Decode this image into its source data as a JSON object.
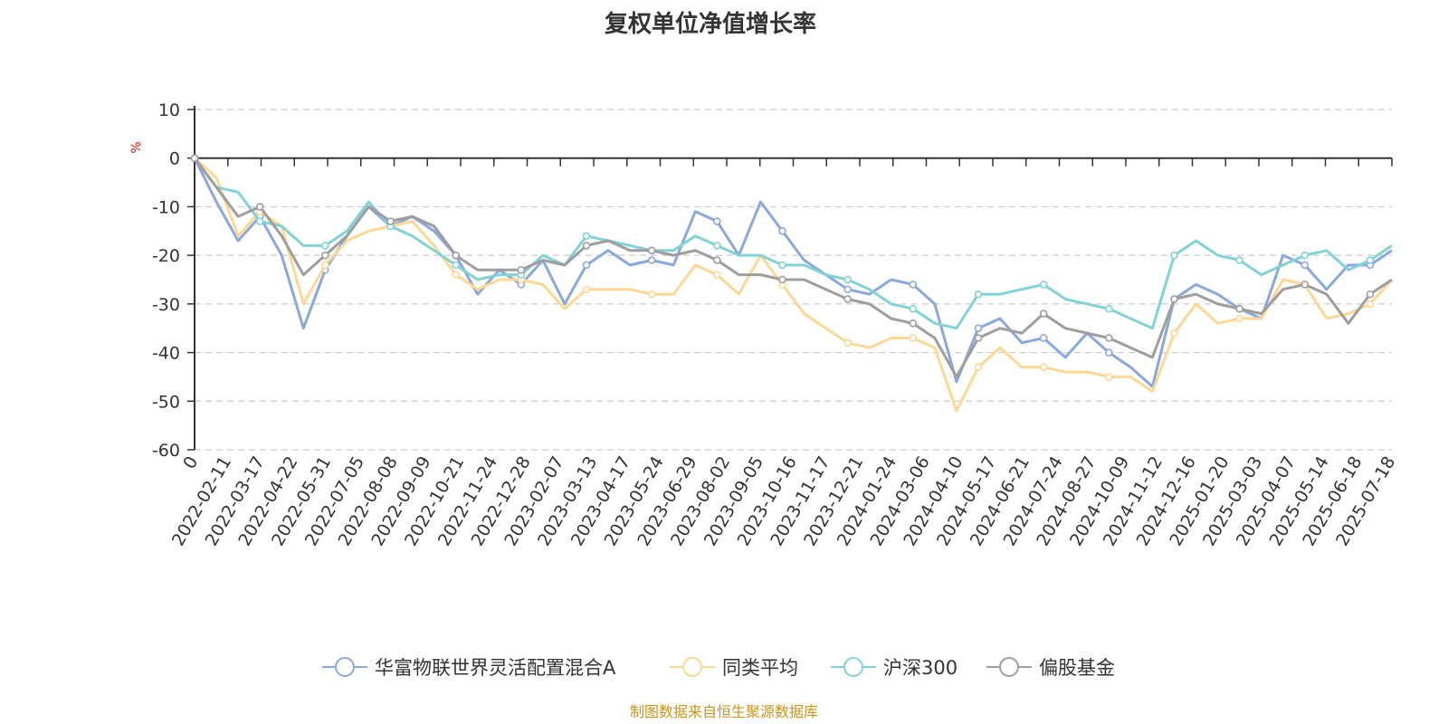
{
  "chart_data": {
    "type": "line",
    "title": "复权单位净值增长率",
    "ylabel": "%",
    "ylim": [
      -60,
      10
    ],
    "yticks": [
      10,
      0,
      -10,
      -20,
      -30,
      -40,
      -50,
      -60
    ],
    "x_tick_labels": [
      "0",
      "2022-02-11",
      "2022-03-17",
      "2022-04-22",
      "2022-05-31",
      "2022-07-05",
      "2022-08-08",
      "2022-09-09",
      "2022-10-21",
      "2022-11-24",
      "2022-12-28",
      "2023-02-07",
      "2023-03-13",
      "2023-04-17",
      "2023-05-24",
      "2023-06-29",
      "2023-08-02",
      "2023-09-05",
      "2023-10-16",
      "2023-11-17",
      "2023-12-21",
      "2024-01-24",
      "2024-03-06",
      "2024-04-10",
      "2024-05-17",
      "2024-06-21",
      "2024-07-24",
      "2024-08-27",
      "2024-10-09",
      "2024-11-12",
      "2024-12-16",
      "2025-01-20",
      "2025-03-03",
      "2025-04-07",
      "2025-05-14",
      "2025-06-18",
      "2025-07-18"
    ],
    "grid": true,
    "legend_position": "bottom",
    "source_note": "制图数据来自恒生聚源数据库",
    "series": [
      {
        "name": "华富物联世界灵活配置混合A",
        "color": "#8aa8db",
        "values": [
          0,
          -9,
          -17,
          -12,
          -20,
          -35,
          -23,
          -16,
          -10,
          -14,
          -12,
          -15,
          -20,
          -28,
          -23,
          -26,
          -21,
          -30,
          -22,
          -19,
          -22,
          -21,
          -22,
          -11,
          -13,
          -20,
          -9,
          -15,
          -21,
          -24,
          -27,
          -28,
          -25,
          -26,
          -30,
          -46,
          -35,
          -33,
          -38,
          -37,
          -41,
          -36,
          -40,
          -43,
          -47,
          -29,
          -26,
          -28,
          -31,
          -33,
          -20,
          -22,
          -27,
          -22,
          -22,
          -19
        ]
      },
      {
        "name": "同类平均",
        "color": "#fdd794",
        "values": [
          0,
          -4,
          -16,
          -11,
          -14,
          -30,
          -22,
          -17,
          -15,
          -14,
          -13,
          -18,
          -24,
          -27,
          -25,
          -25,
          -26,
          -31,
          -27,
          -27,
          -27,
          -28,
          -28,
          -22,
          -24,
          -28,
          -20,
          -26,
          -32,
          -35,
          -38,
          -39,
          -37,
          -37,
          -39,
          -52,
          -43,
          -39,
          -43,
          -43,
          -44,
          -44,
          -45,
          -45,
          -48,
          -36,
          -30,
          -34,
          -33,
          -33,
          -25,
          -26,
          -33,
          -32,
          -30,
          -25
        ]
      },
      {
        "name": "沪深300",
        "color": "#82d2d6",
        "values": [
          0,
          -6,
          -7,
          -13,
          -14,
          -18,
          -18,
          -15,
          -9,
          -14,
          -16,
          -19,
          -22,
          -25,
          -24,
          -24,
          -20,
          -22,
          -16,
          -17,
          -18,
          -19,
          -19,
          -16,
          -18,
          -20,
          -20,
          -22,
          -22,
          -24,
          -25,
          -27,
          -30,
          -31,
          -34,
          -35,
          -28,
          -28,
          -27,
          -26,
          -29,
          -30,
          -31,
          -33,
          -35,
          -20,
          -17,
          -20,
          -21,
          -24,
          -22,
          -20,
          -19,
          -23,
          -21,
          -18
        ]
      },
      {
        "name": "偏股基金",
        "color": "#9e9e9e",
        "values": [
          0,
          -6,
          -12,
          -10,
          -16,
          -24,
          -20,
          -16,
          -10,
          -13,
          -12,
          -14,
          -20,
          -23,
          -23,
          -23,
          -21,
          -22,
          -18,
          -17,
          -19,
          -19,
          -20,
          -19,
          -21,
          -24,
          -24,
          -25,
          -25,
          -27,
          -29,
          -30,
          -33,
          -34,
          -37,
          -45,
          -37,
          -35,
          -36,
          -32,
          -35,
          -36,
          -37,
          -39,
          -41,
          -29,
          -28,
          -30,
          -31,
          -32,
          -27,
          -26,
          -28,
          -34,
          -28,
          -25
        ]
      }
    ]
  }
}
